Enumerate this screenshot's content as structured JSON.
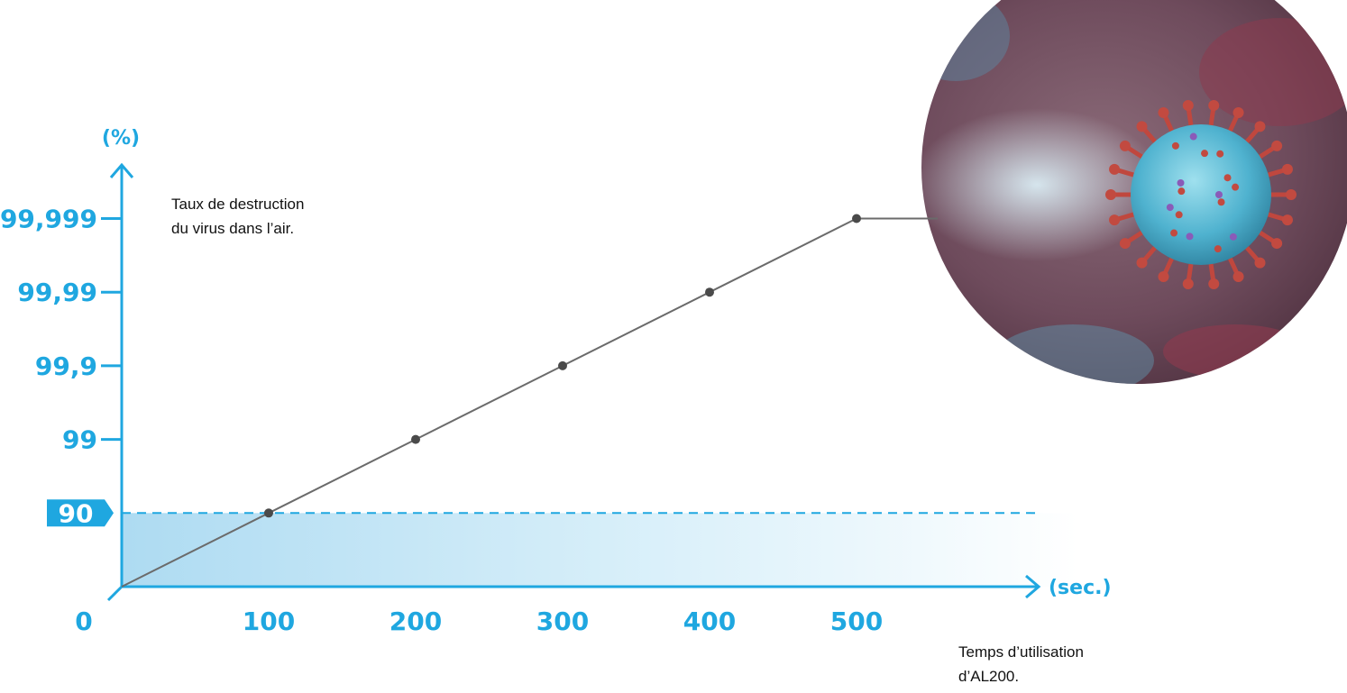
{
  "chart_data": {
    "type": "line",
    "title": "",
    "annotations": {
      "y_description": [
        "Taux de destruction",
        "du virus dans l’air."
      ],
      "x_description": [
        "Temps d’utilisation",
        "d’AL200."
      ]
    },
    "xlabel": "(sec.)",
    "ylabel": "(%)",
    "x_tick_labels": [
      "100",
      "200",
      "300",
      "400",
      "500"
    ],
    "origin_label": "0",
    "y_tick_labels": [
      "90",
      "99",
      "99,9",
      "99,99",
      "99,999"
    ],
    "y_scale": "log-reduction",
    "highlighted_level": "90",
    "series": [
      {
        "x": [
          0,
          100,
          200,
          300,
          400,
          500
        ],
        "y": [
          "0",
          "90",
          "99",
          "99,9",
          "99,99",
          "99,999"
        ]
      }
    ],
    "colors": {
      "accent": "#1fa7e0",
      "line": "#6b6b6b",
      "point": "#4a4a4a"
    },
    "image": {
      "icon": "coronavirus-image"
    }
  }
}
